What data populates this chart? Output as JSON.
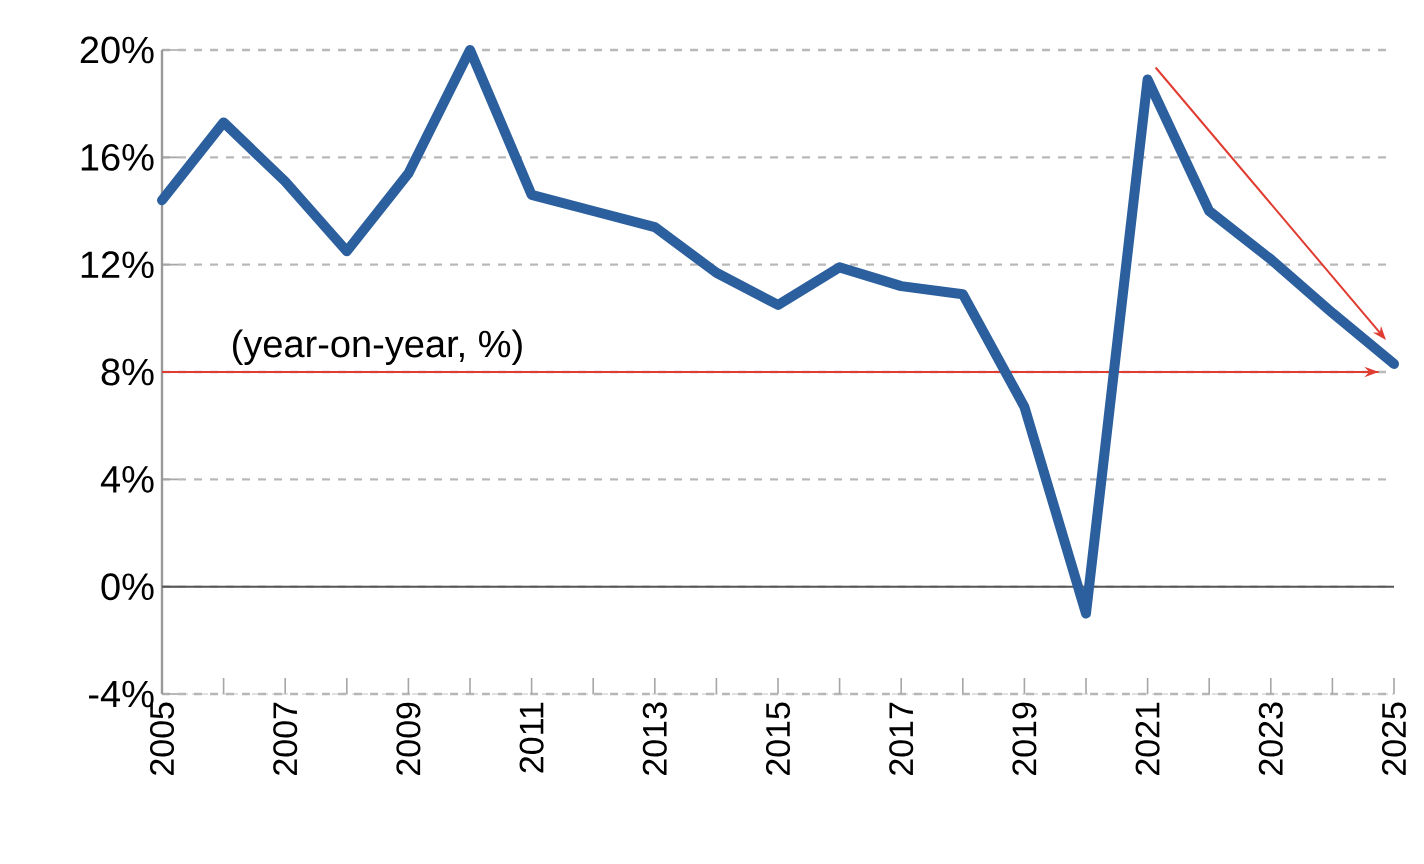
{
  "chart_data": {
    "type": "line",
    "x": [
      2005,
      2006,
      2007,
      2008,
      2009,
      2010,
      2011,
      2012,
      2013,
      2014,
      2015,
      2016,
      2017,
      2018,
      2019,
      2020,
      2021,
      2022,
      2023,
      2024,
      2025
    ],
    "series": [
      {
        "color": "#2b5f9e",
        "values": [
          14.4,
          17.3,
          15.1,
          12.5,
          15.4,
          20.0,
          14.6,
          14.0,
          13.4,
          11.7,
          10.5,
          11.9,
          11.2,
          10.9,
          6.7,
          -1.0,
          18.9,
          14.0,
          12.2,
          10.2,
          8.3
        ]
      }
    ],
    "xlim": [
      2005,
      2025
    ],
    "xticks": [
      2005,
      {
        "value": 2006,
        "label": null
      },
      2007,
      {
        "value": 2008,
        "label": null
      },
      2009,
      {
        "value": 2010,
        "label": null
      },
      2011,
      {
        "value": 2012,
        "label": null
      },
      2013,
      {
        "value": 2014,
        "label": null
      },
      2015,
      {
        "value": 2016,
        "label": null
      },
      2017,
      {
        "value": 2018,
        "label": null
      },
      2019,
      {
        "value": 2020,
        "label": null
      },
      2021,
      {
        "value": 2022,
        "label": null
      },
      2023,
      {
        "value": 2024,
        "label": null
      },
      2025
    ],
    "ylim": [
      -4,
      20
    ],
    "yticks": [
      {
        "value": -4,
        "label": "-4%"
      },
      {
        "value": 0,
        "label": "0%"
      },
      {
        "value": 4,
        "label": "4%"
      },
      {
        "value": 8,
        "label": "8%"
      },
      {
        "value": 12,
        "label": "12%"
      },
      {
        "value": 16,
        "label": "16%"
      },
      {
        "value": 20,
        "label": "20%"
      }
    ],
    "grid": "y",
    "legend": false,
    "marker": "none",
    "line_style": "solid",
    "ref_lines": [
      {
        "axis": "y",
        "value": 0,
        "color": "#555555"
      },
      {
        "axis": "y",
        "value": 8,
        "color": "#e03c31"
      }
    ],
    "annotations": [
      "(year-on-year, %)"
    ]
  }
}
